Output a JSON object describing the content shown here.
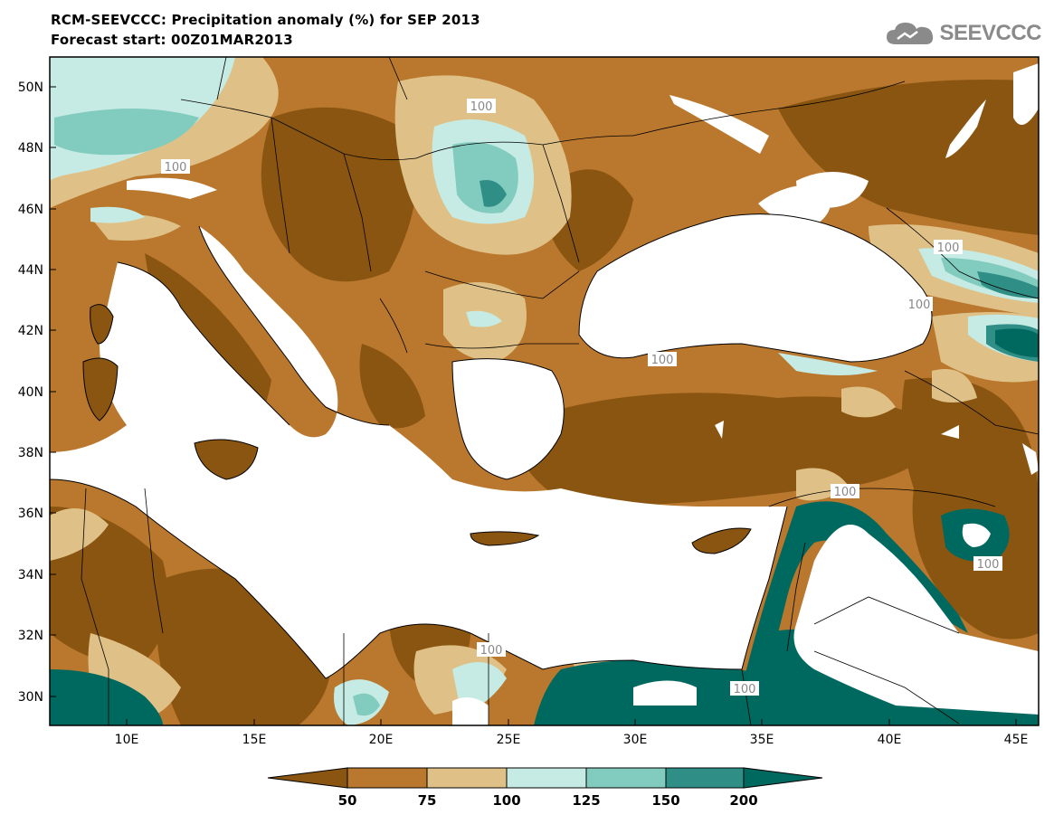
{
  "title_line1": "RCM-SEEVCCC: Precipitation anomaly (%) for SEP 2013",
  "title_line2": "Forecast start: 00Z01MAR2013",
  "logo_text": "SEEVCCC",
  "logo_icon": "cloud-icon",
  "lat_labels": [
    "50N",
    "48N",
    "46N",
    "44N",
    "42N",
    "40N",
    "38N",
    "36N",
    "34N",
    "32N",
    "30N"
  ],
  "lon_labels": [
    "10E",
    "15E",
    "20E",
    "25E",
    "30E",
    "35E",
    "40E",
    "45E"
  ],
  "contour_labels": [
    "100",
    "100",
    "100",
    "100",
    "100",
    "100",
    "100",
    "100",
    "100",
    "100"
  ],
  "colorbar": {
    "labels": [
      "50",
      "75",
      "100",
      "125",
      "150",
      "200"
    ],
    "colors": [
      "#8a5511",
      "#b9782e",
      "#dfc188",
      "#c6ebe4",
      "#82cbbf",
      "#2f8f86",
      "#00695f"
    ]
  },
  "colors": {
    "land_very_dry": "#8a5511",
    "land_dry": "#b9782e",
    "land_slightly_dry": "#dfc188",
    "near_normal_wet": "#c6ebe4",
    "wet": "#82cbbf",
    "very_wet": "#2f8f86",
    "extreme_wet": "#00695f",
    "sea": "#ffffff"
  }
}
